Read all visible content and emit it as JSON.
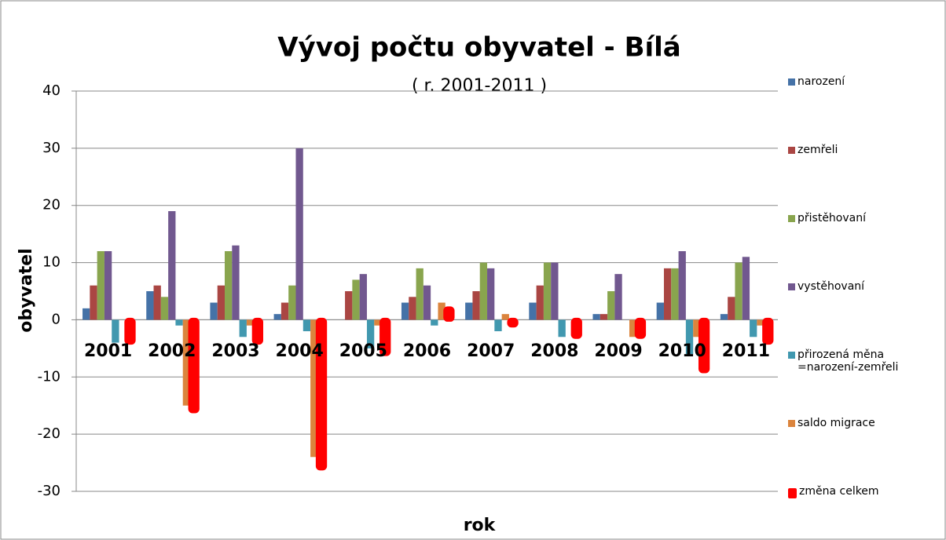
{
  "chart_data": {
    "type": "bar",
    "title": "Vývoj počtu obyvatel - Bílá",
    "subtitle": "( r. 2001-2011 )",
    "x_label": "rok",
    "y_label": "obyvatel",
    "categories": [
      "2001",
      "2002",
      "2003",
      "2004",
      "2005",
      "2006",
      "2007",
      "2008",
      "2009",
      "2010",
      "2011"
    ],
    "series": [
      {
        "name": "narození",
        "color": "#4572a7",
        "values": [
          2,
          5,
          3,
          1,
          0,
          3,
          3,
          3,
          1,
          3,
          1
        ]
      },
      {
        "name": "zemřeli",
        "color": "#aa4643",
        "values": [
          6,
          6,
          6,
          3,
          5,
          4,
          5,
          6,
          1,
          9,
          4
        ]
      },
      {
        "name": "přistěhovaní",
        "color": "#89a54e",
        "values": [
          12,
          4,
          12,
          6,
          7,
          9,
          10,
          10,
          5,
          9,
          10
        ]
      },
      {
        "name": "vystěhovaní",
        "color": "#71588f",
        "values": [
          12,
          19,
          13,
          30,
          8,
          6,
          9,
          10,
          8,
          12,
          11
        ]
      },
      {
        "name": "přirozená měna =narození-zemřeli",
        "color": "#4198af",
        "values": [
          -4,
          -1,
          -3,
          -2,
          -5,
          -1,
          -2,
          -3,
          0,
          -6,
          -3
        ]
      },
      {
        "name": "saldo migrace",
        "color": "#db843d",
        "values": [
          0,
          -15,
          -1,
          -24,
          -1,
          3,
          1,
          0,
          -3,
          -3,
          -1
        ]
      },
      {
        "name": "změna celkem",
        "color": "#ff0000",
        "values": [
          -4,
          -16,
          -4,
          -26,
          -6,
          2,
          -1,
          -3,
          -3,
          -9,
          -4
        ]
      }
    ],
    "ylim": [
      -30,
      40
    ],
    "yticks": [
      -30,
      -20,
      -10,
      0,
      10,
      20,
      30,
      40
    ],
    "grid": true,
    "legend": "right"
  }
}
